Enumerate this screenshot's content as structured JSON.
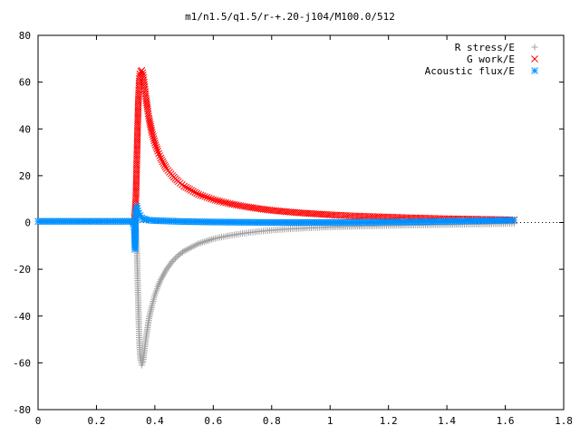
{
  "chart_data": {
    "type": "scatter",
    "title": "m1/n1.5/q1.5/r-+.20-j104/M100.0/512",
    "xlabel": "",
    "ylabel": "",
    "xlim": [
      0,
      1.8
    ],
    "ylim": [
      -80,
      80
    ],
    "xticks": [
      "0",
      "0.2",
      "0.4",
      "0.6",
      "0.8",
      "1",
      "1.2",
      "1.4",
      "1.6",
      "1.8"
    ],
    "yticks": [
      "80",
      "60",
      "40",
      "20",
      "0",
      "-20",
      "-40",
      "-60",
      "-80"
    ],
    "grid": false,
    "legend_position": "top-right",
    "series": [
      {
        "name": "R stress/E",
        "marker": "plus",
        "color": "#a0a0a0",
        "x": [
          0.335,
          0.337,
          0.339,
          0.341,
          0.343,
          0.345,
          0.347,
          0.349,
          0.352,
          0.355,
          0.358,
          0.362,
          0.366,
          0.37,
          0.375,
          0.38,
          0.39,
          0.4,
          0.41,
          0.42,
          0.44,
          0.46,
          0.48,
          0.5,
          0.55,
          0.6,
          0.65,
          0.7,
          0.75,
          0.8,
          0.85,
          0.9,
          0.95,
          1.0,
          1.1,
          1.2,
          1.3,
          1.4,
          1.5,
          1.6,
          1.63
        ],
        "y": [
          -3,
          -8,
          -14,
          -24,
          -34,
          -43,
          -51,
          -56,
          -59,
          -61,
          -60,
          -57,
          -53,
          -49,
          -45,
          -41,
          -35.5,
          -31,
          -27.5,
          -24.5,
          -20,
          -16.6,
          -14.1,
          -12.2,
          -9.0,
          -7.0,
          -5.7,
          -4.7,
          -3.9,
          -3.3,
          -2.85,
          -2.5,
          -2.2,
          -1.95,
          -1.6,
          -1.3,
          -1.1,
          -0.9,
          -0.7,
          -0.5,
          -0.5
        ]
      },
      {
        "name": "G work/E",
        "marker": "cross",
        "color": "#ff0000",
        "x": [
          0.33,
          0.335,
          0.337,
          0.339,
          0.341,
          0.343,
          0.345,
          0.347,
          0.349,
          0.352,
          0.355,
          0.358,
          0.362,
          0.366,
          0.37,
          0.375,
          0.38,
          0.39,
          0.4,
          0.41,
          0.42,
          0.44,
          0.46,
          0.48,
          0.5,
          0.55,
          0.6,
          0.65,
          0.7,
          0.75,
          0.8,
          0.85,
          0.9,
          0.95,
          1.0,
          1.1,
          1.2,
          1.3,
          1.4,
          1.5,
          1.6,
          1.63
        ],
        "y": [
          1,
          10.5,
          20.5,
          31,
          41,
          50,
          56.5,
          61.5,
          63.5,
          64.5,
          65,
          64,
          61,
          57,
          53,
          48.5,
          44.5,
          38.5,
          34,
          30.5,
          27.5,
          23,
          20,
          17.5,
          15.5,
          12,
          9.8,
          8.2,
          7.0,
          6.0,
          5.2,
          4.6,
          4.1,
          3.7,
          3.3,
          2.7,
          2.3,
          1.9,
          1.6,
          1.4,
          1.2,
          1.1
        ]
      },
      {
        "name": "Acoustic flux/E",
        "marker": "star",
        "color": "#0090ff",
        "x": [
          0.0,
          0.1,
          0.2,
          0.25,
          0.3,
          0.32,
          0.325,
          0.328,
          0.33,
          0.332,
          0.334,
          0.336,
          0.338,
          0.34,
          0.342,
          0.345,
          0.35,
          0.355,
          0.36,
          0.37,
          0.38,
          0.4,
          0.45,
          0.5,
          0.6,
          0.7,
          0.8,
          0.9,
          1.0,
          1.1,
          1.2,
          1.3,
          1.4,
          1.5,
          1.6,
          1.63
        ],
        "y": [
          0.5,
          0.5,
          0.5,
          0.5,
          0.5,
          0.5,
          0.3,
          -1,
          -3,
          -11.5,
          1,
          5,
          7,
          6,
          5,
          4,
          3,
          2,
          1.5,
          1.2,
          1.0,
          0.8,
          0.6,
          0.4,
          0.2,
          0.1,
          0.0,
          0.0,
          0.0,
          0.1,
          0.2,
          0.3,
          0.5,
          0.7,
          0.9,
          1.0
        ]
      }
    ]
  }
}
